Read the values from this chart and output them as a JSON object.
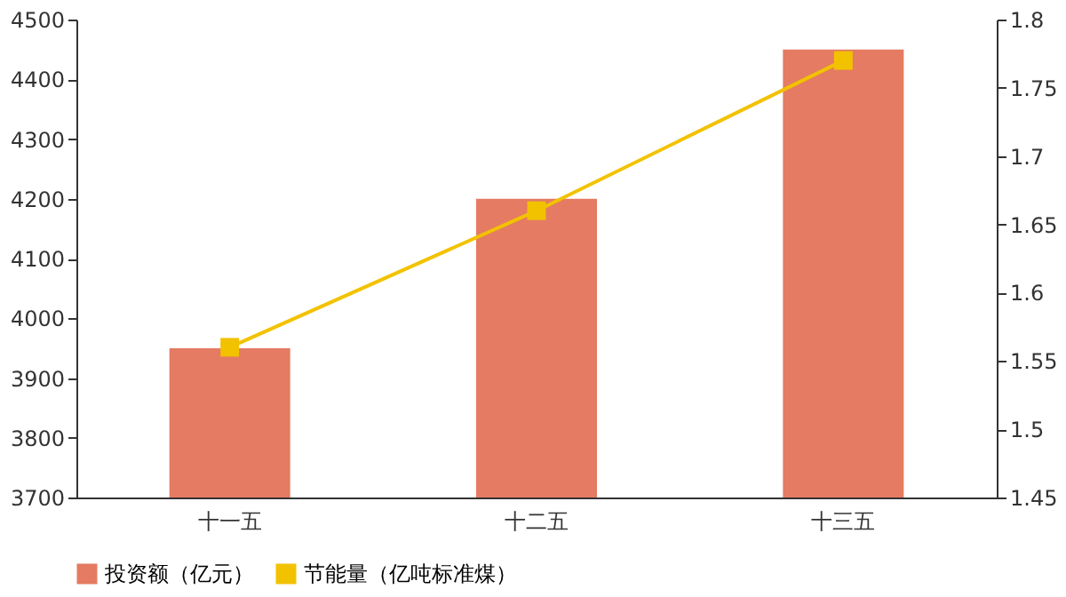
{
  "chart_data": {
    "type": "bar",
    "categories": [
      "十一五",
      "十二五",
      "十三五"
    ],
    "series": [
      {
        "name": "投资额（亿元）",
        "color": "#e47b62",
        "values": [
          3950,
          4200,
          4450
        ]
      },
      {
        "name": "节能量（亿吨标准煤）",
        "type": "line",
        "axis": "y2",
        "marker": "square",
        "color": "#f2c200",
        "values": [
          1.56,
          1.66,
          1.77
        ]
      }
    ],
    "ylim": [
      3700,
      4500
    ],
    "yticks": [
      3700,
      3800,
      3900,
      4000,
      4100,
      4200,
      4300,
      4400,
      4500
    ],
    "y2lim": [
      1.45,
      1.8
    ],
    "y2ticks": [
      1.45,
      1.5,
      1.55,
      1.6,
      1.65,
      1.7,
      1.75,
      1.8
    ],
    "legend": "bottom",
    "grid": false
  }
}
